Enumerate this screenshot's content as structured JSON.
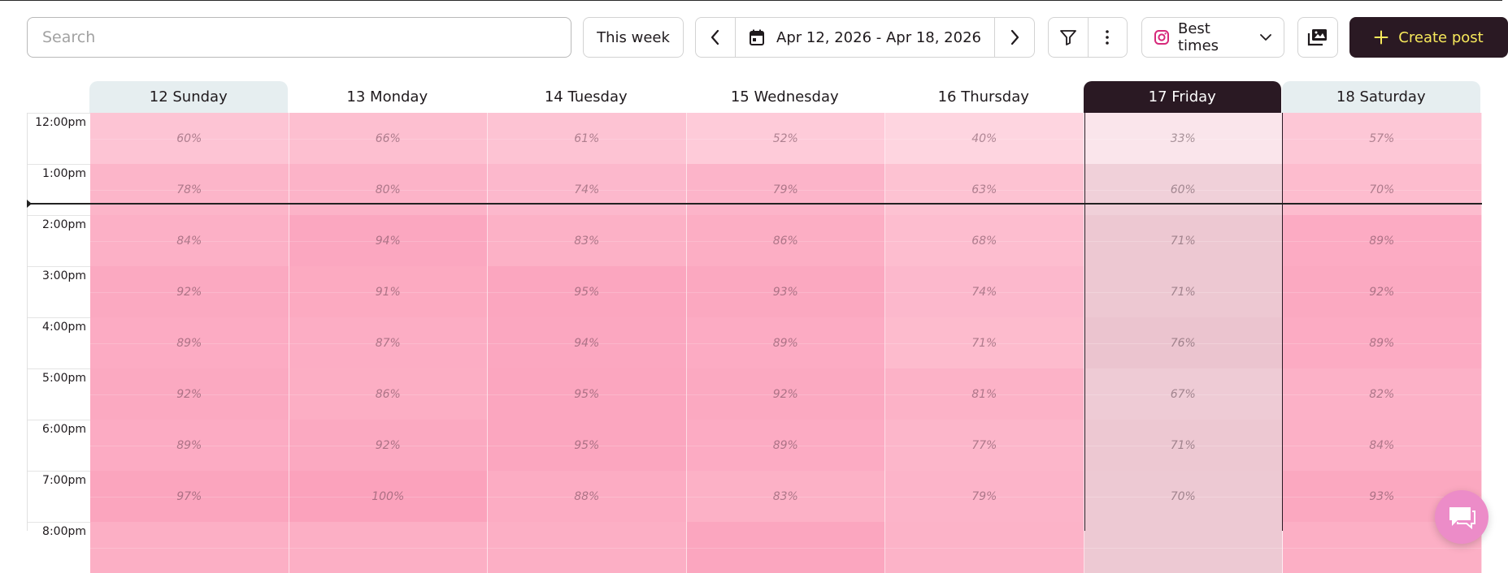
{
  "toolbar": {
    "search_placeholder": "Search",
    "search_value": "",
    "this_week_label": "This week",
    "date_range": "Apr 12, 2026 - Apr 18, 2026",
    "best_times_label": "Best times",
    "create_post_label": "Create post",
    "icons": {
      "prev": "chevron-left-icon",
      "next": "chevron-right-icon",
      "calendar": "calendar-icon",
      "filter": "filter-icon",
      "more": "more-vertical-icon",
      "instagram": "instagram-icon",
      "dropdown": "chevron-down-icon",
      "media": "media-library-icon",
      "plus": "plus-icon",
      "chat": "chat-icon"
    }
  },
  "colors": {
    "primary_dark": "#2a1923",
    "create_text": "#f7e95b",
    "weekend_header_bg": "#e6eef0",
    "instagram": "#d6297a",
    "chat_bubble": "#ec8cc8"
  },
  "calendar": {
    "days": [
      {
        "label": "12 Sunday",
        "weekend": true,
        "today": false
      },
      {
        "label": "13 Monday",
        "weekend": false,
        "today": false
      },
      {
        "label": "14 Tuesday",
        "weekend": false,
        "today": false
      },
      {
        "label": "15 Wednesday",
        "weekend": false,
        "today": false
      },
      {
        "label": "16 Thursday",
        "weekend": false,
        "today": false
      },
      {
        "label": "17 Friday",
        "weekend": false,
        "today": true
      },
      {
        "label": "18 Saturday",
        "weekend": true,
        "today": false
      }
    ],
    "times": [
      "12:00pm",
      "1:00pm",
      "2:00pm",
      "3:00pm",
      "4:00pm",
      "5:00pm",
      "6:00pm",
      "7:00pm",
      "8:00pm"
    ],
    "scores": [
      [
        "60%",
        "66%",
        "61%",
        "52%",
        "40%",
        "33%",
        "57%"
      ],
      [
        "78%",
        "80%",
        "74%",
        "79%",
        "63%",
        "60%",
        "70%"
      ],
      [
        "84%",
        "94%",
        "83%",
        "86%",
        "68%",
        "71%",
        "89%"
      ],
      [
        "92%",
        "91%",
        "95%",
        "93%",
        "74%",
        "71%",
        "92%"
      ],
      [
        "89%",
        "87%",
        "94%",
        "89%",
        "71%",
        "76%",
        "89%"
      ],
      [
        "92%",
        "86%",
        "95%",
        "92%",
        "81%",
        "67%",
        "82%"
      ],
      [
        "89%",
        "92%",
        "95%",
        "89%",
        "77%",
        "71%",
        "84%"
      ],
      [
        "97%",
        "100%",
        "88%",
        "83%",
        "79%",
        "70%",
        "93%"
      ],
      [
        "",
        "",
        "",
        "",
        "",
        "",
        ""
      ]
    ],
    "partial_row_fill": [
      0.85,
      0.85,
      0.85,
      0.95,
      0.8,
      0.7,
      0.85
    ],
    "current_time_fraction": 2.02
  }
}
